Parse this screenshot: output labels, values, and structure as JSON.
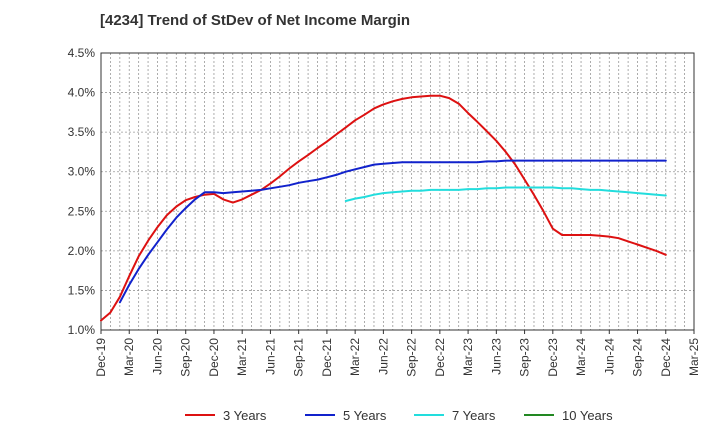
{
  "chart_data": {
    "type": "line",
    "title": "[4234]  Trend of StDev of Net Income Margin",
    "xlabel": "",
    "ylabel": "",
    "x_ticks": [
      "Dec-19",
      "Mar-20",
      "Jun-20",
      "Sep-20",
      "Dec-20",
      "Mar-21",
      "Jun-21",
      "Sep-21",
      "Dec-21",
      "Mar-22",
      "Jun-22",
      "Sep-22",
      "Dec-22",
      "Mar-23",
      "Jun-23",
      "Sep-23",
      "Dec-23",
      "Mar-24",
      "Jun-24",
      "Sep-24",
      "Dec-24",
      "Mar-25"
    ],
    "y_ticks": [
      "1.0%",
      "1.5%",
      "2.0%",
      "2.5%",
      "3.0%",
      "3.5%",
      "4.0%",
      "4.5%"
    ],
    "ylim": [
      1.0,
      4.5
    ],
    "grid": true,
    "legend_position": "bottom",
    "series": [
      {
        "name": "3 Years",
        "color": "#dd1111",
        "points": [
          [
            0,
            1.12
          ],
          [
            0.33,
            1.22
          ],
          [
            0.67,
            1.42
          ],
          [
            1,
            1.68
          ],
          [
            1.33,
            1.93
          ],
          [
            1.67,
            2.13
          ],
          [
            2,
            2.3
          ],
          [
            2.33,
            2.45
          ],
          [
            2.67,
            2.56
          ],
          [
            3,
            2.64
          ],
          [
            3.33,
            2.68
          ],
          [
            3.67,
            2.71
          ],
          [
            4,
            2.72
          ],
          [
            4.33,
            2.65
          ],
          [
            4.67,
            2.61
          ],
          [
            5,
            2.65
          ],
          [
            5.33,
            2.71
          ],
          [
            5.67,
            2.77
          ],
          [
            6,
            2.85
          ],
          [
            6.33,
            2.94
          ],
          [
            6.67,
            3.04
          ],
          [
            7,
            3.13
          ],
          [
            7.33,
            3.21
          ],
          [
            7.67,
            3.3
          ],
          [
            8,
            3.38
          ],
          [
            8.33,
            3.47
          ],
          [
            8.67,
            3.56
          ],
          [
            9,
            3.65
          ],
          [
            9.33,
            3.72
          ],
          [
            9.67,
            3.8
          ],
          [
            10,
            3.85
          ],
          [
            10.33,
            3.89
          ],
          [
            10.67,
            3.92
          ],
          [
            11,
            3.94
          ],
          [
            11.33,
            3.95
          ],
          [
            11.67,
            3.96
          ],
          [
            12,
            3.96
          ],
          [
            12.33,
            3.93
          ],
          [
            12.67,
            3.86
          ],
          [
            13,
            3.74
          ],
          [
            13.33,
            3.63
          ],
          [
            13.67,
            3.51
          ],
          [
            14,
            3.39
          ],
          [
            14.33,
            3.25
          ],
          [
            14.67,
            3.09
          ],
          [
            15,
            2.9
          ],
          [
            15.33,
            2.71
          ],
          [
            15.67,
            2.5
          ],
          [
            16,
            2.28
          ],
          [
            16.33,
            2.2
          ],
          [
            16.67,
            2.2
          ],
          [
            17,
            2.2
          ],
          [
            17.33,
            2.2
          ],
          [
            17.67,
            2.19
          ],
          [
            18,
            2.18
          ],
          [
            18.33,
            2.16
          ],
          [
            18.67,
            2.12
          ],
          [
            19,
            2.08
          ],
          [
            19.33,
            2.04
          ],
          [
            19.67,
            2.0
          ],
          [
            20,
            1.95
          ]
        ]
      },
      {
        "name": "5 Years",
        "color": "#1122cc",
        "points": [
          [
            0.67,
            1.35
          ],
          [
            1,
            1.57
          ],
          [
            1.33,
            1.77
          ],
          [
            1.67,
            1.95
          ],
          [
            2,
            2.11
          ],
          [
            2.33,
            2.27
          ],
          [
            2.67,
            2.42
          ],
          [
            3,
            2.54
          ],
          [
            3.33,
            2.65
          ],
          [
            3.67,
            2.74
          ],
          [
            4,
            2.74
          ],
          [
            4.33,
            2.73
          ],
          [
            4.67,
            2.74
          ],
          [
            5,
            2.75
          ],
          [
            5.33,
            2.76
          ],
          [
            5.67,
            2.77
          ],
          [
            6,
            2.79
          ],
          [
            6.33,
            2.81
          ],
          [
            6.67,
            2.83
          ],
          [
            7,
            2.86
          ],
          [
            7.33,
            2.88
          ],
          [
            7.67,
            2.9
          ],
          [
            8,
            2.93
          ],
          [
            8.33,
            2.96
          ],
          [
            8.67,
            3.0
          ],
          [
            9,
            3.03
          ],
          [
            9.33,
            3.06
          ],
          [
            9.67,
            3.09
          ],
          [
            10,
            3.1
          ],
          [
            10.33,
            3.11
          ],
          [
            10.67,
            3.12
          ],
          [
            11,
            3.12
          ],
          [
            11.33,
            3.12
          ],
          [
            11.67,
            3.12
          ],
          [
            12,
            3.12
          ],
          [
            12.33,
            3.12
          ],
          [
            12.67,
            3.12
          ],
          [
            13,
            3.12
          ],
          [
            13.33,
            3.12
          ],
          [
            13.67,
            3.13
          ],
          [
            14,
            3.13
          ],
          [
            14.33,
            3.14
          ],
          [
            14.67,
            3.14
          ],
          [
            15,
            3.14
          ],
          [
            15.33,
            3.14
          ],
          [
            15.67,
            3.14
          ],
          [
            16,
            3.14
          ],
          [
            16.33,
            3.14
          ],
          [
            16.67,
            3.14
          ],
          [
            17,
            3.14
          ],
          [
            17.33,
            3.14
          ],
          [
            17.67,
            3.14
          ],
          [
            18,
            3.14
          ],
          [
            18.33,
            3.14
          ],
          [
            18.67,
            3.14
          ],
          [
            19,
            3.14
          ],
          [
            19.33,
            3.14
          ],
          [
            19.67,
            3.14
          ],
          [
            20,
            3.14
          ]
        ]
      },
      {
        "name": "7 Years",
        "color": "#22dddd",
        "points": [
          [
            8.67,
            2.63
          ],
          [
            9,
            2.66
          ],
          [
            9.33,
            2.68
          ],
          [
            9.67,
            2.71
          ],
          [
            10,
            2.73
          ],
          [
            10.33,
            2.74
          ],
          [
            10.67,
            2.75
          ],
          [
            11,
            2.76
          ],
          [
            11.33,
            2.76
          ],
          [
            11.67,
            2.77
          ],
          [
            12,
            2.77
          ],
          [
            12.33,
            2.77
          ],
          [
            12.67,
            2.77
          ],
          [
            13,
            2.78
          ],
          [
            13.33,
            2.78
          ],
          [
            13.67,
            2.79
          ],
          [
            14,
            2.79
          ],
          [
            14.33,
            2.8
          ],
          [
            14.67,
            2.8
          ],
          [
            15,
            2.8
          ],
          [
            15.33,
            2.8
          ],
          [
            15.67,
            2.8
          ],
          [
            16,
            2.8
          ],
          [
            16.33,
            2.79
          ],
          [
            16.67,
            2.79
          ],
          [
            17,
            2.78
          ],
          [
            17.33,
            2.77
          ],
          [
            17.67,
            2.77
          ],
          [
            18,
            2.76
          ],
          [
            18.33,
            2.75
          ],
          [
            18.67,
            2.74
          ],
          [
            19,
            2.73
          ],
          [
            19.33,
            2.72
          ],
          [
            19.67,
            2.71
          ],
          [
            20,
            2.7
          ]
        ]
      },
      {
        "name": "10 Years",
        "color": "#228822",
        "points": []
      }
    ]
  }
}
